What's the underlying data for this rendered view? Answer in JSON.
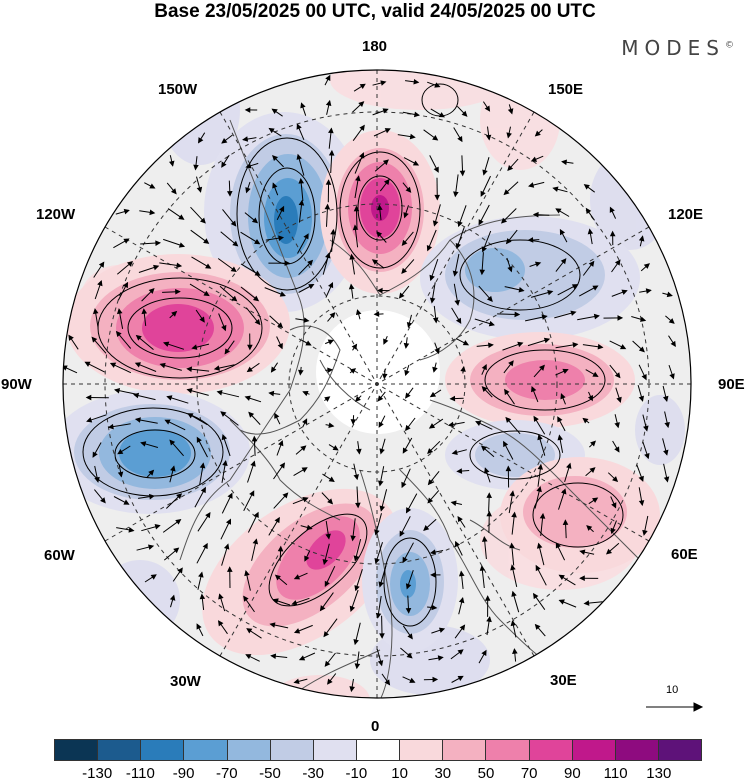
{
  "title": "Base 23/05/2025 00 UTC, valid 24/05/2025 00 UTC",
  "brand": "MODES",
  "brand_mark": "©",
  "longitude_labels": {
    "lon_180": "180",
    "lon_150e": "150E",
    "lon_120e": "120E",
    "lon_90e": "90E",
    "lon_60e": "60E",
    "lon_30e": "30E",
    "lon_0": "0",
    "lon_30w": "30W",
    "lon_60w": "60W",
    "lon_90w": "90W",
    "lon_120w": "120W",
    "lon_150w": "150W"
  },
  "vector_scale_label": "10",
  "colorbar": {
    "colors": [
      "#0b3554",
      "#1c5b8e",
      "#2a7cba",
      "#5b9ed3",
      "#93b8de",
      "#c1cce5",
      "#e0e0f0",
      "#ffffff",
      "#f9d9dc",
      "#f4b1c1",
      "#ee80ab",
      "#e0449a",
      "#c0188b",
      "#8e0b7f",
      "#5e1279"
    ],
    "tick_labels": [
      "-130",
      "-110",
      "-90",
      "-70",
      "-50",
      "-30",
      "-10",
      "10",
      "30",
      "50",
      "70",
      "90",
      "110",
      "130"
    ]
  }
}
